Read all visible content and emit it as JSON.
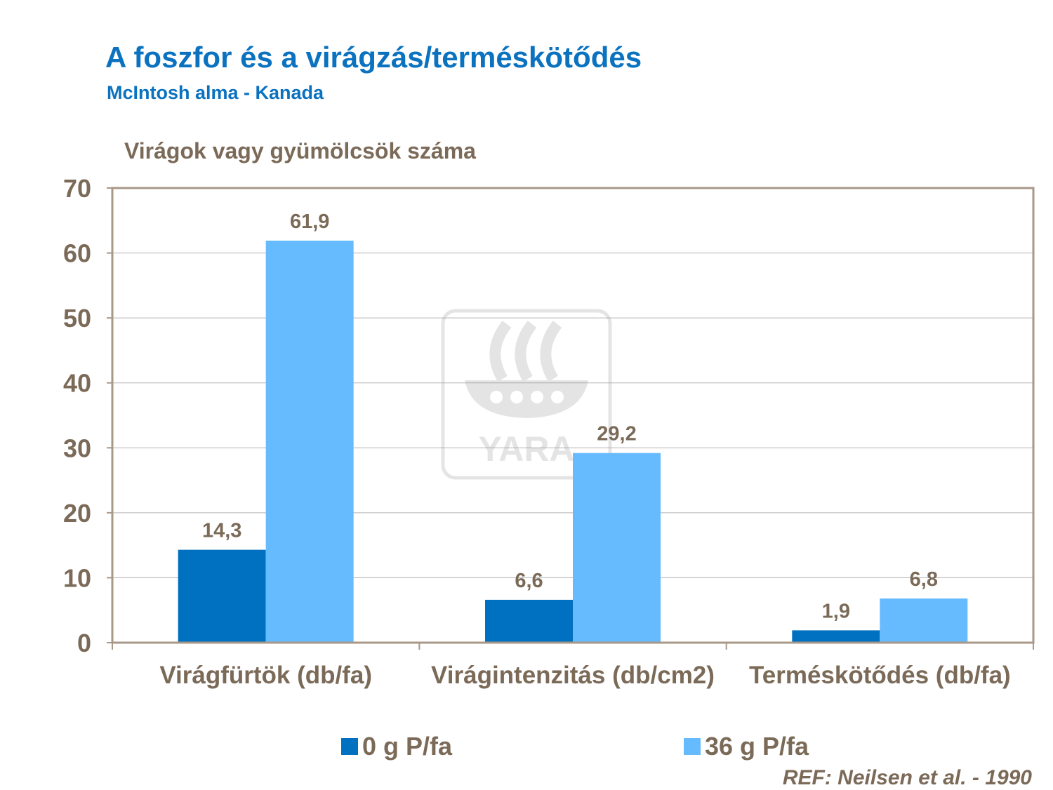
{
  "header": {
    "title": "A foszfor és a virágzás/terméskötődés",
    "subtitle": "McIntosh alma - Kanada"
  },
  "watermark": {
    "text": "YARA"
  },
  "chart_data": {
    "type": "bar",
    "ylabel": "Virágok vagy gyümölcsök száma",
    "ylim": [
      0,
      70
    ],
    "yticks": [
      0,
      10,
      20,
      30,
      40,
      50,
      60,
      70
    ],
    "grid": true,
    "categories": [
      "Virágfürtök (db/fa)",
      "Virágintenzitás (db/cm2)",
      "Terméskötődés (db/fa)"
    ],
    "series": [
      {
        "name": "0 g P/fa",
        "color": "#0070c0",
        "values": [
          14.3,
          6.6,
          1.9
        ],
        "labels": [
          "14,3",
          "6,6",
          "1,9"
        ]
      },
      {
        "name": "36 g P/fa",
        "color": "#66bbff",
        "values": [
          61.9,
          29.2,
          6.8
        ],
        "labels": [
          "61,9",
          "29,2",
          "6,8"
        ]
      }
    ],
    "legend_position": "bottom"
  },
  "reference": "REF: Neilsen et al. - 1990"
}
